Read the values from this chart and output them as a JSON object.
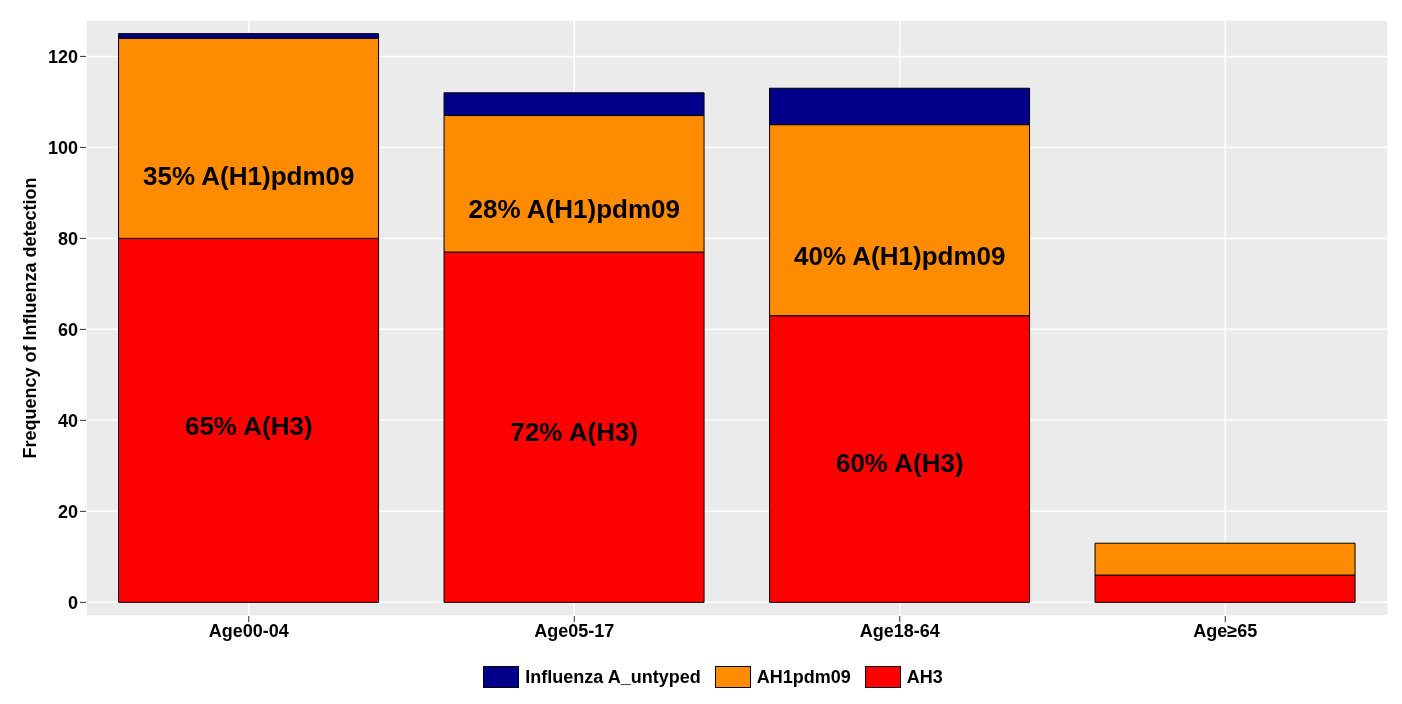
{
  "chart_data": {
    "type": "bar",
    "stacked": true,
    "ylabel": "Frequency of Influenza detection",
    "categories": [
      "Age00-04",
      "Age05-17",
      "Age18-64",
      "Age≥65"
    ],
    "series": [
      {
        "name": "AH3",
        "color": "#ff0000",
        "values": [
          80,
          77,
          63,
          6
        ]
      },
      {
        "name": "AH1pdm09",
        "color": "#ff8c00",
        "values": [
          44,
          30,
          42,
          7
        ]
      },
      {
        "name": "Influenza A_untyped",
        "color": "#00008b",
        "values": [
          1,
          5,
          8,
          0
        ]
      }
    ],
    "ylim": [
      -3,
      128
    ],
    "yticks": [
      0,
      20,
      40,
      60,
      80,
      100,
      120
    ],
    "grid": true,
    "legend": "bottom",
    "annotations": [
      "35% A(H1)pdm09",
      "65% A(H3)",
      "28% A(H1)pdm09",
      "72% A(H3)",
      "40% A(H1)pdm09",
      "60% A(H3)"
    ]
  }
}
